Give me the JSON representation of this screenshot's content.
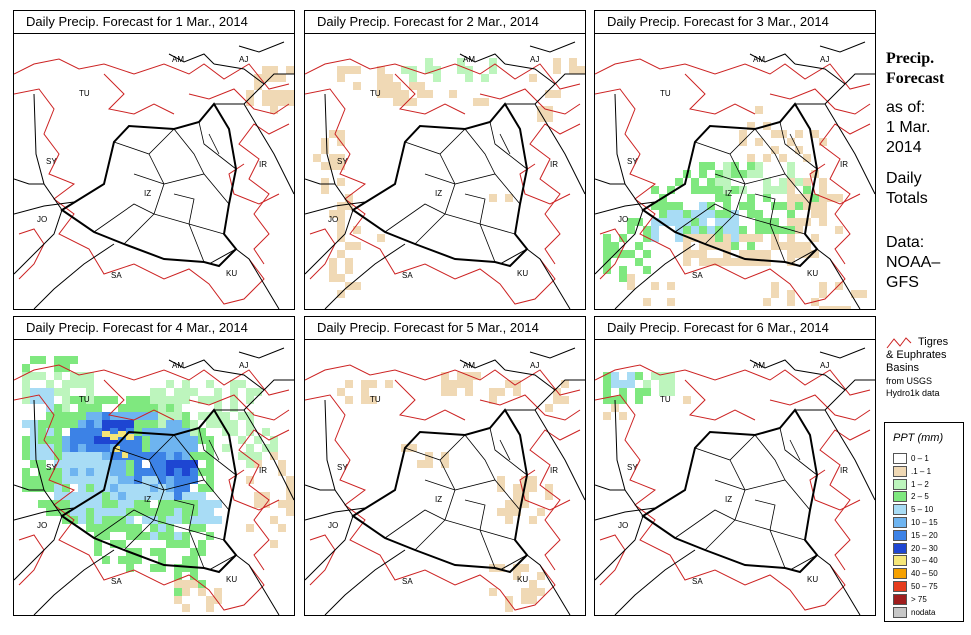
{
  "panels": [
    {
      "title": "Daily Precip. Forecast for  1 Mar., 2014",
      "precip": "d1"
    },
    {
      "title": "Daily Precip. Forecast for  2 Mar., 2014",
      "precip": "d2"
    },
    {
      "title": "Daily Precip. Forecast for  3 Mar., 2014",
      "precip": "d3"
    },
    {
      "title": "Daily Precip. Forecast for  4 Mar., 2014",
      "precip": "d4"
    },
    {
      "title": "Daily Precip. Forecast for  5 Mar., 2014",
      "precip": "d5"
    },
    {
      "title": "Daily Precip. Forecast for  6 Mar., 2014",
      "precip": "d6"
    }
  ],
  "map_labels": [
    "AM",
    "AJ",
    "TU",
    "SY",
    "IR",
    "IZ",
    "JO",
    "SA",
    "KU"
  ],
  "sidebar": {
    "title_line1": "Precip.",
    "title_line2": "Forecast",
    "asof_line1": "as of:",
    "asof_line2": "1 Mar.",
    "asof_line3": "2014",
    "daily_line1": "Daily",
    "daily_line2": "Totals",
    "data_line1": "Data:",
    "data_line2": "NOAA–",
    "data_line3": "GFS"
  },
  "basin_legend": {
    "line1": "Tigres",
    "line2": "& Euphrates",
    "line3": "Basins",
    "line4": "from USGS",
    "line5": "Hydro1k data",
    "color": "#cc2222"
  },
  "ppt_legend": {
    "title": "PPT (mm)",
    "classes": [
      {
        "label": "0 – 1",
        "color": "#ffffff"
      },
      {
        "label": ".1 – 1",
        "color": "#f0d9b5"
      },
      {
        "label": "1 – 2",
        "color": "#bdf5bd"
      },
      {
        "label": "2 – 5",
        "color": "#7fe87f"
      },
      {
        "label": "5 – 10",
        "color": "#a8dcf5"
      },
      {
        "label": "10 – 15",
        "color": "#6eb4f0"
      },
      {
        "label": "15 – 20",
        "color": "#3c82e6"
      },
      {
        "label": "20 – 30",
        "color": "#1e46d2"
      },
      {
        "label": "30 – 40",
        "color": "#f5e678"
      },
      {
        "label": "40 – 50",
        "color": "#f5a000"
      },
      {
        "label": "50 – 75",
        "color": "#e63c1e"
      },
      {
        "label": "> 75",
        "color": "#a01e1e"
      },
      {
        "label": "nodata",
        "color": "#c8c8c8"
      }
    ]
  }
}
